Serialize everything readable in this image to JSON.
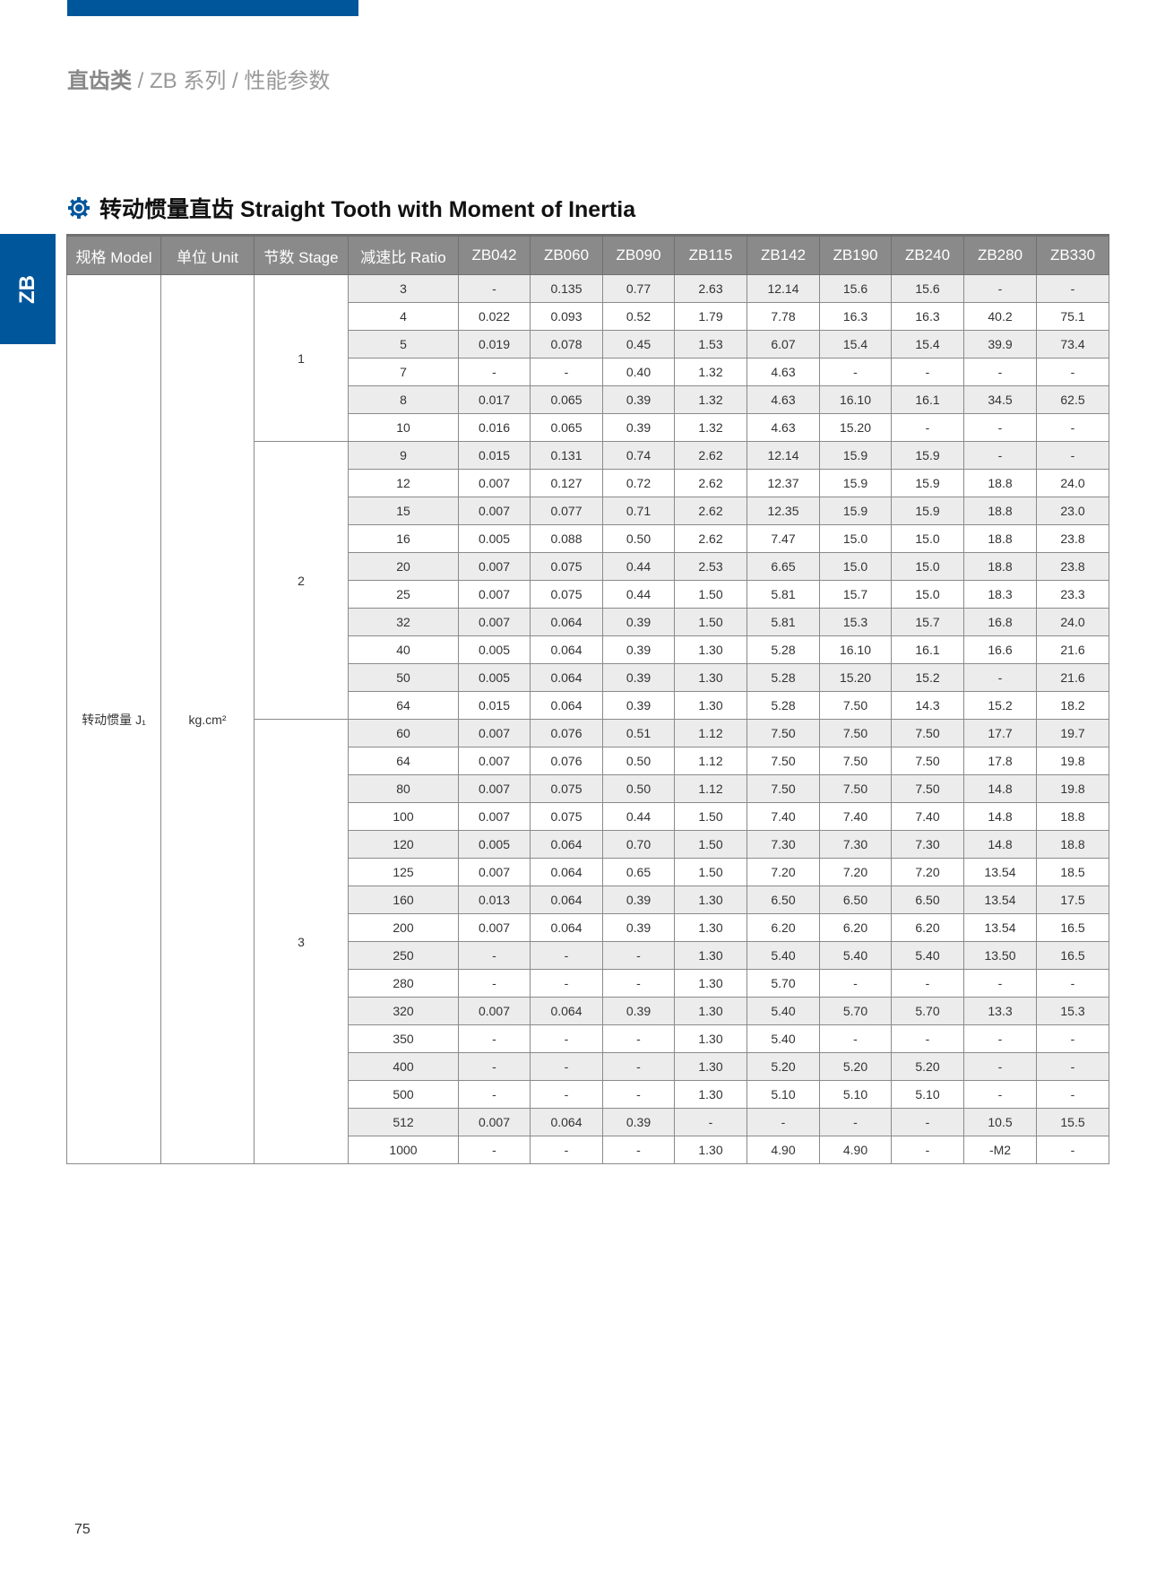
{
  "breadcrumb": {
    "category": "直齿类",
    "sep1": " / ",
    "series": "ZB 系列",
    "sep2": " / ",
    "page": "性能参数"
  },
  "side_tab": "ZB",
  "section_title": "转动惯量直齿 Straight Tooth with Moment of Inertia",
  "icon": "gear-icon",
  "colors": {
    "brand": "#00569b",
    "header": "#8a8a8a",
    "row_shade": "#ececec"
  },
  "table": {
    "headers": [
      "规格 Model",
      "单位 Unit",
      "节数 Stage",
      "减速比 Ratio",
      "ZB042",
      "ZB060",
      "ZB090",
      "ZB115",
      "ZB142",
      "ZB190",
      "ZB240",
      "ZB280",
      "ZB330"
    ],
    "quantity": "转动惯量 J₁",
    "unit": "kg.cm²",
    "stages": [
      {
        "stage": "1",
        "rows": [
          [
            "3",
            "-",
            "0.135",
            "0.77",
            "2.63",
            "12.14",
            "15.6",
            "15.6",
            "-",
            "-"
          ],
          [
            "4",
            "0.022",
            "0.093",
            "0.52",
            "1.79",
            "7.78",
            "16.3",
            "16.3",
            "40.2",
            "75.1"
          ],
          [
            "5",
            "0.019",
            "0.078",
            "0.45",
            "1.53",
            "6.07",
            "15.4",
            "15.4",
            "39.9",
            "73.4"
          ],
          [
            "7",
            "-",
            "-",
            "0.40",
            "1.32",
            "4.63",
            "-",
            "-",
            "-",
            "-"
          ],
          [
            "8",
            "0.017",
            "0.065",
            "0.39",
            "1.32",
            "4.63",
            "16.10",
            "16.1",
            "34.5",
            "62.5"
          ],
          [
            "10",
            "0.016",
            "0.065",
            "0.39",
            "1.32",
            "4.63",
            "15.20",
            "-",
            "-",
            "-"
          ]
        ]
      },
      {
        "stage": "2",
        "rows": [
          [
            "9",
            "0.015",
            "0.131",
            "0.74",
            "2.62",
            "12.14",
            "15.9",
            "15.9",
            "-",
            "-"
          ],
          [
            "12",
            "0.007",
            "0.127",
            "0.72",
            "2.62",
            "12.37",
            "15.9",
            "15.9",
            "18.8",
            "24.0"
          ],
          [
            "15",
            "0.007",
            "0.077",
            "0.71",
            "2.62",
            "12.35",
            "15.9",
            "15.9",
            "18.8",
            "23.0"
          ],
          [
            "16",
            "0.005",
            "0.088",
            "0.50",
            "2.62",
            "7.47",
            "15.0",
            "15.0",
            "18.8",
            "23.8"
          ],
          [
            "20",
            "0.007",
            "0.075",
            "0.44",
            "2.53",
            "6.65",
            "15.0",
            "15.0",
            "18.8",
            "23.8"
          ],
          [
            "25",
            "0.007",
            "0.075",
            "0.44",
            "1.50",
            "5.81",
            "15.7",
            "15.0",
            "18.3",
            "23.3"
          ],
          [
            "32",
            "0.007",
            "0.064",
            "0.39",
            "1.50",
            "5.81",
            "15.3",
            "15.7",
            "16.8",
            "24.0"
          ],
          [
            "40",
            "0.005",
            "0.064",
            "0.39",
            "1.30",
            "5.28",
            "16.10",
            "16.1",
            "16.6",
            "21.6"
          ],
          [
            "50",
            "0.005",
            "0.064",
            "0.39",
            "1.30",
            "5.28",
            "15.20",
            "15.2",
            "-",
            "21.6"
          ],
          [
            "64",
            "0.015",
            "0.064",
            "0.39",
            "1.30",
            "5.28",
            "7.50",
            "14.3",
            "15.2",
            "18.2"
          ]
        ]
      },
      {
        "stage": "3",
        "rows": [
          [
            "60",
            "0.007",
            "0.076",
            "0.51",
            "1.12",
            "7.50",
            "7.50",
            "7.50",
            "17.7",
            "19.7"
          ],
          [
            "64",
            "0.007",
            "0.076",
            "0.50",
            "1.12",
            "7.50",
            "7.50",
            "7.50",
            "17.8",
            "19.8"
          ],
          [
            "80",
            "0.007",
            "0.075",
            "0.50",
            "1.12",
            "7.50",
            "7.50",
            "7.50",
            "14.8",
            "19.8"
          ],
          [
            "100",
            "0.007",
            "0.075",
            "0.44",
            "1.50",
            "7.40",
            "7.40",
            "7.40",
            "14.8",
            "18.8"
          ],
          [
            "120",
            "0.005",
            "0.064",
            "0.70",
            "1.50",
            "7.30",
            "7.30",
            "7.30",
            "14.8",
            "18.8"
          ],
          [
            "125",
            "0.007",
            "0.064",
            "0.65",
            "1.50",
            "7.20",
            "7.20",
            "7.20",
            "13.54",
            "18.5"
          ],
          [
            "160",
            "0.013",
            "0.064",
            "0.39",
            "1.30",
            "6.50",
            "6.50",
            "6.50",
            "13.54",
            "17.5"
          ],
          [
            "200",
            "0.007",
            "0.064",
            "0.39",
            "1.30",
            "6.20",
            "6.20",
            "6.20",
            "13.54",
            "16.5"
          ],
          [
            "250",
            "-",
            "-",
            "-",
            "1.30",
            "5.40",
            "5.40",
            "5.40",
            "13.50",
            "16.5"
          ],
          [
            "280",
            "-",
            "-",
            "-",
            "1.30",
            "5.70",
            "-",
            "-",
            "-",
            "-"
          ],
          [
            "320",
            "0.007",
            "0.064",
            "0.39",
            "1.30",
            "5.40",
            "5.70",
            "5.70",
            "13.3",
            "15.3"
          ],
          [
            "350",
            "-",
            "-",
            "-",
            "1.30",
            "5.40",
            "-",
            "-",
            "-",
            "-"
          ],
          [
            "400",
            "-",
            "-",
            "-",
            "1.30",
            "5.20",
            "5.20",
            "5.20",
            "-",
            "-"
          ],
          [
            "500",
            "-",
            "-",
            "-",
            "1.30",
            "5.10",
            "5.10",
            "5.10",
            "-",
            "-"
          ],
          [
            "512",
            "0.007",
            "0.064",
            "0.39",
            "-",
            "-",
            "-",
            "-",
            "10.5",
            "15.5"
          ],
          [
            "1000",
            "-",
            "-",
            "-",
            "1.30",
            "4.90",
            "4.90",
            "-",
            "-M2",
            "-"
          ]
        ]
      }
    ]
  },
  "page_number": "75"
}
